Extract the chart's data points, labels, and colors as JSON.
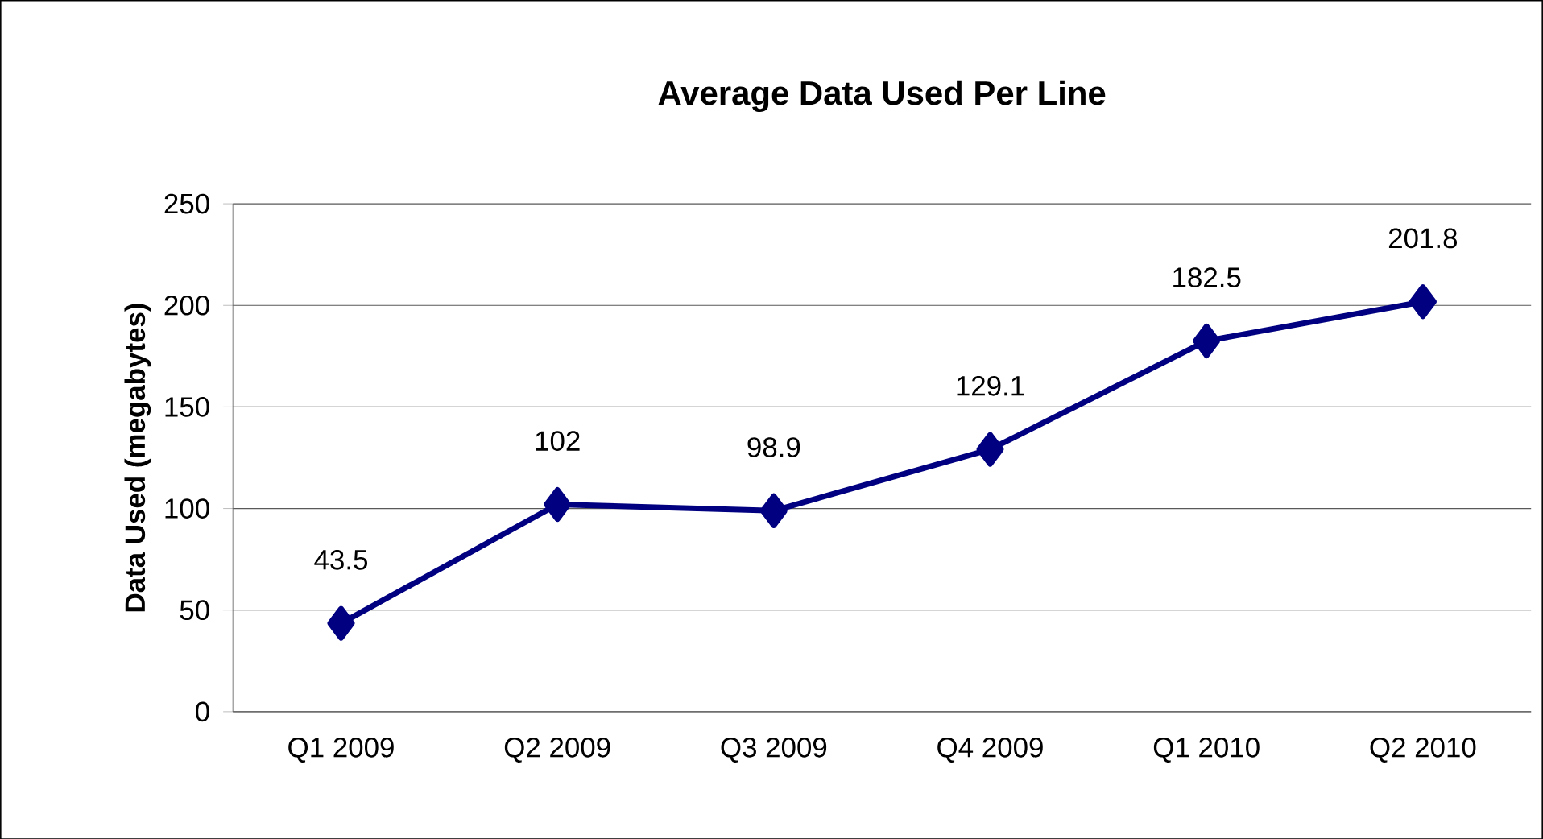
{
  "chart_data": {
    "type": "line",
    "title": "Average Data Used Per Line",
    "ylabel": "Data Used (megabytes)",
    "categories": [
      "Q1 2009",
      "Q2 2009",
      "Q3 2009",
      "Q4 2009",
      "Q1 2010",
      "Q2 2010"
    ],
    "values": [
      43.5,
      102,
      98.9,
      129.1,
      182.5,
      201.8
    ],
    "color": "#000080",
    "marker": "diamond",
    "line_style": "solid",
    "ylim": [
      0,
      250
    ],
    "yticks": [
      0,
      50,
      100,
      150,
      200,
      250
    ],
    "grid": "y",
    "data_labels": true
  }
}
